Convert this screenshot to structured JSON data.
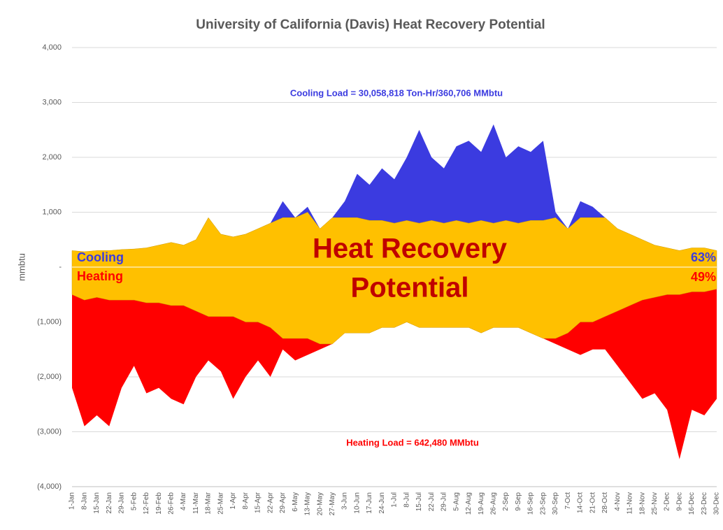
{
  "chart_data": {
    "type": "area",
    "title": "University of California (Davis) Heat Recovery Potential",
    "y_label": "mmbtu",
    "annotations": {
      "cooling_load": "Cooling Load = 30,058,818 Ton-Hr/360,706 MMbtu",
      "heating_load": "Heating Load = 642,480 MMbtu",
      "center_line1": "Heat Recovery",
      "center_line2": "Potential",
      "cooling_pct": "63%",
      "heating_pct": "49%"
    },
    "categories": [
      "1-Jan",
      "8-Jan",
      "15-Jan",
      "22-Jan",
      "29-Jan",
      "5-Feb",
      "12-Feb",
      "19-Feb",
      "26-Feb",
      "4-Mar",
      "11-Mar",
      "18-Mar",
      "25-Mar",
      "1-Apr",
      "8-Apr",
      "15-Apr",
      "22-Apr",
      "29-Apr",
      "6-May",
      "13-May",
      "20-May",
      "27-May",
      "3-Jun",
      "10-Jun",
      "17-Jun",
      "24-Jun",
      "1-Jul",
      "8-Jul",
      "15-Jul",
      "22-Jul",
      "29-Jul",
      "5-Aug",
      "12-Aug",
      "19-Aug",
      "26-Aug",
      "2-Sep",
      "9-Sep",
      "16-Sep",
      "23-Sep",
      "30-Sep",
      "7-Oct",
      "14-Oct",
      "21-Oct",
      "28-Oct",
      "4-Nov",
      "11-Nov",
      "18-Nov",
      "25-Nov",
      "2-Dec",
      "9-Dec",
      "16-Dec",
      "23-Dec",
      "30-Dec"
    ],
    "series": [
      {
        "name": "Cooling",
        "color": "#3b3be0",
        "values": [
          300,
          280,
          300,
          300,
          320,
          330,
          350,
          400,
          450,
          400,
          500,
          900,
          600,
          550,
          600,
          700,
          800,
          1200,
          900,
          1100,
          700,
          900,
          1200,
          1700,
          1500,
          1800,
          1600,
          2000,
          2500,
          2000,
          1800,
          2200,
          2300,
          2100,
          2600,
          2000,
          2200,
          2100,
          2300,
          1000,
          700,
          1200,
          1100,
          900,
          700,
          600,
          500,
          400,
          350,
          300,
          350,
          350,
          300
        ]
      },
      {
        "name": "Heating",
        "color": "#ff0000",
        "values": [
          -2200,
          -2900,
          -2700,
          -2900,
          -2200,
          -1800,
          -2300,
          -2200,
          -2400,
          -2500,
          -2000,
          -1700,
          -1900,
          -2400,
          -2000,
          -1700,
          -2000,
          -1500,
          -1700,
          -1600,
          -1500,
          -1400,
          -1200,
          -1200,
          -1200,
          -1100,
          -1100,
          -1000,
          -1100,
          -1100,
          -1100,
          -1100,
          -1100,
          -1200,
          -1100,
          -1100,
          -1100,
          -1200,
          -1300,
          -1400,
          -1500,
          -1600,
          -1500,
          -1500,
          -1800,
          -2100,
          -2400,
          -2300,
          -2600,
          -3500,
          -2600,
          -2700,
          -2400
        ]
      },
      {
        "color": "#ffc000",
        "values": [
          300,
          280,
          300,
          300,
          320,
          330,
          350,
          400,
          450,
          400,
          500,
          900,
          600,
          550,
          600,
          700,
          800,
          900,
          900,
          1000,
          700,
          900,
          900,
          900,
          850,
          850,
          800,
          850,
          800,
          850,
          800,
          850,
          800,
          850,
          800,
          850,
          800,
          850,
          850,
          900,
          700,
          900,
          900,
          900,
          700,
          600,
          500,
          400,
          350,
          300,
          350,
          350,
          300
        ]
      },
      {
        "color": "#ffc000",
        "values": [
          -500,
          -600,
          -550,
          -600,
          -600,
          -600,
          -650,
          -650,
          -700,
          -700,
          -800,
          -900,
          -900,
          -900,
          -1000,
          -1000,
          -1100,
          -1300,
          -1300,
          -1300,
          -1400,
          -1400,
          -1200,
          -1200,
          -1200,
          -1100,
          -1100,
          -1000,
          -1100,
          -1100,
          -1100,
          -1100,
          -1100,
          -1200,
          -1100,
          -1100,
          -1100,
          -1200,
          -1300,
          -1300,
          -1200,
          -1000,
          -1000,
          -900,
          -800,
          -700,
          -600,
          -550,
          -500,
          -500,
          -450,
          -450,
          -400
        ]
      }
    ],
    "ylim": [
      -4000,
      4000
    ],
    "yticks": [
      {
        "value": -4000,
        "label": "(4,000)"
      },
      {
        "value": -3000,
        "label": "(3,000)"
      },
      {
        "value": -2000,
        "label": "(2,000)"
      },
      {
        "value": -1000,
        "label": "(1,000)"
      },
      {
        "value": 0,
        "label": "-"
      },
      {
        "value": 1000,
        "label": "1,000"
      },
      {
        "value": 2000,
        "label": "2,000"
      },
      {
        "value": 3000,
        "label": "3,000"
      },
      {
        "value": 4000,
        "label": "4,000"
      }
    ],
    "grid": true
  }
}
